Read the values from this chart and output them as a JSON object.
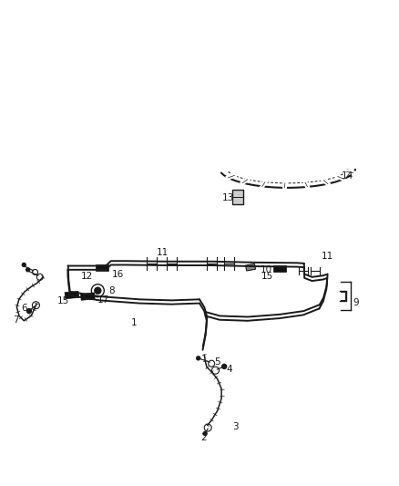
{
  "background_color": "#ffffff",
  "line_color": "#1a1a1a",
  "label_color": "#1a1a1a",
  "figsize": [
    4.38,
    5.33
  ],
  "dpi": 100,
  "lw_tube": 1.4,
  "lw_hose": 1.1,
  "lw_thin": 0.8
}
